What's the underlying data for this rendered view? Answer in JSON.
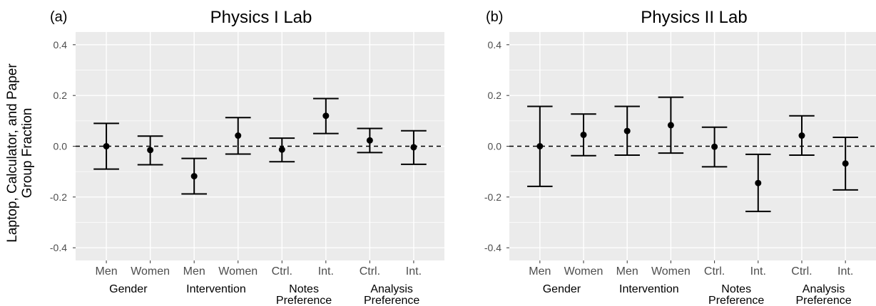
{
  "ylabel_lines": [
    "Laptop, Calculator, and Paper",
    "Group Fraction"
  ],
  "ytick_labels": [
    "0.4",
    "0.2",
    "0.0",
    "-0.2",
    "-0.4"
  ],
  "colors": {
    "panel_bg": "#ebebeb",
    "grid": "#ffffff",
    "marks": "#000000",
    "tick_text": "#4d4d4d"
  },
  "chart_data": [
    {
      "type": "scatter",
      "tag": "(a)",
      "title": "Physics I Lab",
      "ylim": [
        -0.45,
        0.45
      ],
      "yticks": [
        0.4,
        0.2,
        0.0,
        -0.2,
        -0.4
      ],
      "reference_line": {
        "y": 0.0,
        "style": "dashed"
      },
      "categories": [
        "Men",
        "Women",
        "Men",
        "Women",
        "Ctrl.",
        "Int.",
        "Ctrl.",
        "Int."
      ],
      "groups": [
        {
          "label_lines": [
            "Gender"
          ],
          "span": [
            0,
            1
          ]
        },
        {
          "label_lines": [
            "Intervention"
          ],
          "span": [
            2,
            3
          ]
        },
        {
          "label_lines": [
            "Notes",
            "Preference"
          ],
          "span": [
            4,
            5
          ]
        },
        {
          "label_lines": [
            "Analysis",
            "Preference"
          ],
          "span": [
            6,
            7
          ]
        }
      ],
      "points": [
        {
          "value": 0.0,
          "low": -0.09,
          "high": 0.09
        },
        {
          "value": -0.015,
          "low": -0.073,
          "high": 0.04
        },
        {
          "value": -0.118,
          "low": -0.188,
          "high": -0.048
        },
        {
          "value": 0.042,
          "low": -0.031,
          "high": 0.113
        },
        {
          "value": -0.013,
          "low": -0.061,
          "high": 0.032
        },
        {
          "value": 0.12,
          "low": 0.05,
          "high": 0.188
        },
        {
          "value": 0.023,
          "low": -0.025,
          "high": 0.07
        },
        {
          "value": -0.004,
          "low": -0.071,
          "high": 0.061
        }
      ],
      "grid": true
    },
    {
      "type": "scatter",
      "tag": "(b)",
      "title": "Physics II Lab",
      "ylim": [
        -0.45,
        0.45
      ],
      "yticks": [
        0.4,
        0.2,
        0.0,
        -0.2,
        -0.4
      ],
      "reference_line": {
        "y": 0.0,
        "style": "dashed"
      },
      "categories": [
        "Men",
        "Women",
        "Men",
        "Women",
        "Ctrl.",
        "Int.",
        "Ctrl.",
        "Int."
      ],
      "groups": [
        {
          "label_lines": [
            "Gender"
          ],
          "span": [
            0,
            1
          ]
        },
        {
          "label_lines": [
            "Intervention"
          ],
          "span": [
            2,
            3
          ]
        },
        {
          "label_lines": [
            "Notes",
            "Preference"
          ],
          "span": [
            4,
            5
          ]
        },
        {
          "label_lines": [
            "Analysis",
            "Preference"
          ],
          "span": [
            6,
            7
          ]
        }
      ],
      "points": [
        {
          "value": 0.0,
          "low": -0.158,
          "high": 0.157
        },
        {
          "value": 0.045,
          "low": -0.037,
          "high": 0.127
        },
        {
          "value": 0.06,
          "low": -0.035,
          "high": 0.157
        },
        {
          "value": 0.083,
          "low": -0.027,
          "high": 0.193
        },
        {
          "value": -0.002,
          "low": -0.081,
          "high": 0.075
        },
        {
          "value": -0.145,
          "low": -0.257,
          "high": -0.032
        },
        {
          "value": 0.042,
          "low": -0.035,
          "high": 0.12
        },
        {
          "value": -0.068,
          "low": -0.172,
          "high": 0.035
        }
      ],
      "grid": true
    }
  ]
}
